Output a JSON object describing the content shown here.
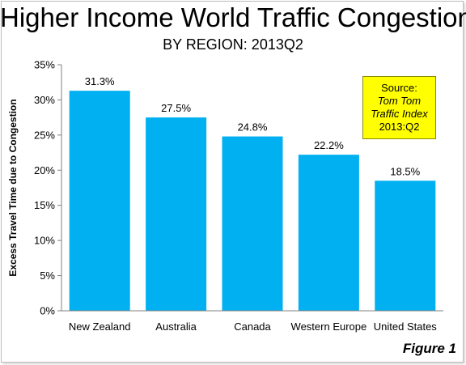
{
  "title": "Higher Income World Traffic Congestion",
  "subtitle": "BY REGION: 2013Q2",
  "source": {
    "line1": "Source:",
    "line2": "Tom Tom",
    "line3": "Traffic Index",
    "line4": "2013:Q2"
  },
  "figure_label": "Figure 1",
  "colors": {
    "bar": "#00b0f0",
    "source_box": "#ffff00"
  },
  "chart_data": {
    "type": "bar",
    "title": "Higher Income World Traffic Congestion",
    "subtitle": "BY REGION: 2013Q2",
    "categories": [
      "New Zealand",
      "Australia",
      "Canada",
      "Western Europe",
      "United States"
    ],
    "values": [
      31.3,
      27.5,
      24.8,
      22.2,
      18.5
    ],
    "value_labels": [
      "31.3%",
      "27.5%",
      "24.8%",
      "22.2%",
      "18.5%"
    ],
    "xlabel": "",
    "ylabel": "Excess Travel Time due to Congestion",
    "ylim": [
      0,
      35
    ],
    "yticks": [
      0,
      5,
      10,
      15,
      20,
      25,
      30,
      35
    ],
    "ytick_labels": [
      "0%",
      "5%",
      "10%",
      "15%",
      "20%",
      "25%",
      "30%",
      "35%"
    ],
    "grid": false,
    "legend": "none"
  }
}
